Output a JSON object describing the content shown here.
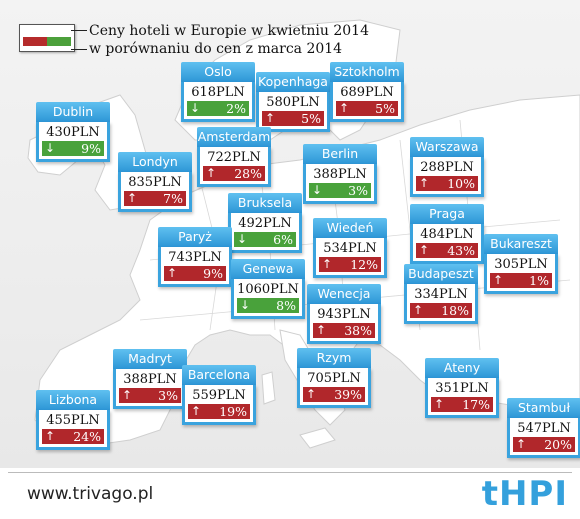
{
  "legend": {
    "line1": "Ceny hoteli w Europie w kwietniu 2014",
    "line2": "w porównaniu do cen z marca 2014",
    "colors": {
      "up": "#b1272b",
      "down": "#49a23b"
    }
  },
  "cities": {
    "oslo": {
      "name": "Oslo",
      "price": "618PLN",
      "change": "2%",
      "dir": "down"
    },
    "kopenhaga": {
      "name": "Kopenhaga",
      "price": "580PLN",
      "change": "5%",
      "dir": "up"
    },
    "sztokholm": {
      "name": "Sztokholm",
      "price": "689PLN",
      "change": "5%",
      "dir": "up"
    },
    "dublin": {
      "name": "Dublin",
      "price": "430PLN",
      "change": "9%",
      "dir": "down"
    },
    "amsterdam": {
      "name": "Amsterdam",
      "price": "722PLN",
      "change": "28%",
      "dir": "up"
    },
    "londyn": {
      "name": "Londyn",
      "price": "835PLN",
      "change": "7%",
      "dir": "up"
    },
    "berlin": {
      "name": "Berlin",
      "price": "388PLN",
      "change": "3%",
      "dir": "down"
    },
    "warszawa": {
      "name": "Warszawa",
      "price": "288PLN",
      "change": "10%",
      "dir": "up"
    },
    "bruksela": {
      "name": "Bruksela",
      "price": "492PLN",
      "change": "6%",
      "dir": "down"
    },
    "paryz": {
      "name": "Paryż",
      "price": "743PLN",
      "change": "9%",
      "dir": "up"
    },
    "wieden": {
      "name": "Wiedeń",
      "price": "534PLN",
      "change": "12%",
      "dir": "up"
    },
    "praga": {
      "name": "Praga",
      "price": "484PLN",
      "change": "43%",
      "dir": "up"
    },
    "bukareszt": {
      "name": "Bukareszt",
      "price": "305PLN",
      "change": "1%",
      "dir": "up"
    },
    "genewa": {
      "name": "Genewa",
      "price": "1060PLN",
      "change": "8%",
      "dir": "down"
    },
    "wenecja": {
      "name": "Wenecja",
      "price": "943PLN",
      "change": "38%",
      "dir": "up"
    },
    "budapeszt": {
      "name": "Budapeszt",
      "price": "334PLN",
      "change": "18%",
      "dir": "up"
    },
    "madryt": {
      "name": "Madryt",
      "price": "388PLN",
      "change": "3%",
      "dir": "up"
    },
    "barcelona": {
      "name": "Barcelona",
      "price": "559PLN",
      "change": "19%",
      "dir": "up"
    },
    "rzym": {
      "name": "Rzym",
      "price": "705PLN",
      "change": "39%",
      "dir": "up"
    },
    "ateny": {
      "name": "Ateny",
      "price": "351PLN",
      "change": "17%",
      "dir": "up"
    },
    "lizbona": {
      "name": "Lizbona",
      "price": "455PLN",
      "change": "24%",
      "dir": "up"
    },
    "stambul": {
      "name": "Stambuł",
      "price": "547PLN",
      "change": "20%",
      "dir": "up"
    }
  },
  "footer": {
    "url": "www.trivago.pl",
    "brand": "tHPI"
  }
}
